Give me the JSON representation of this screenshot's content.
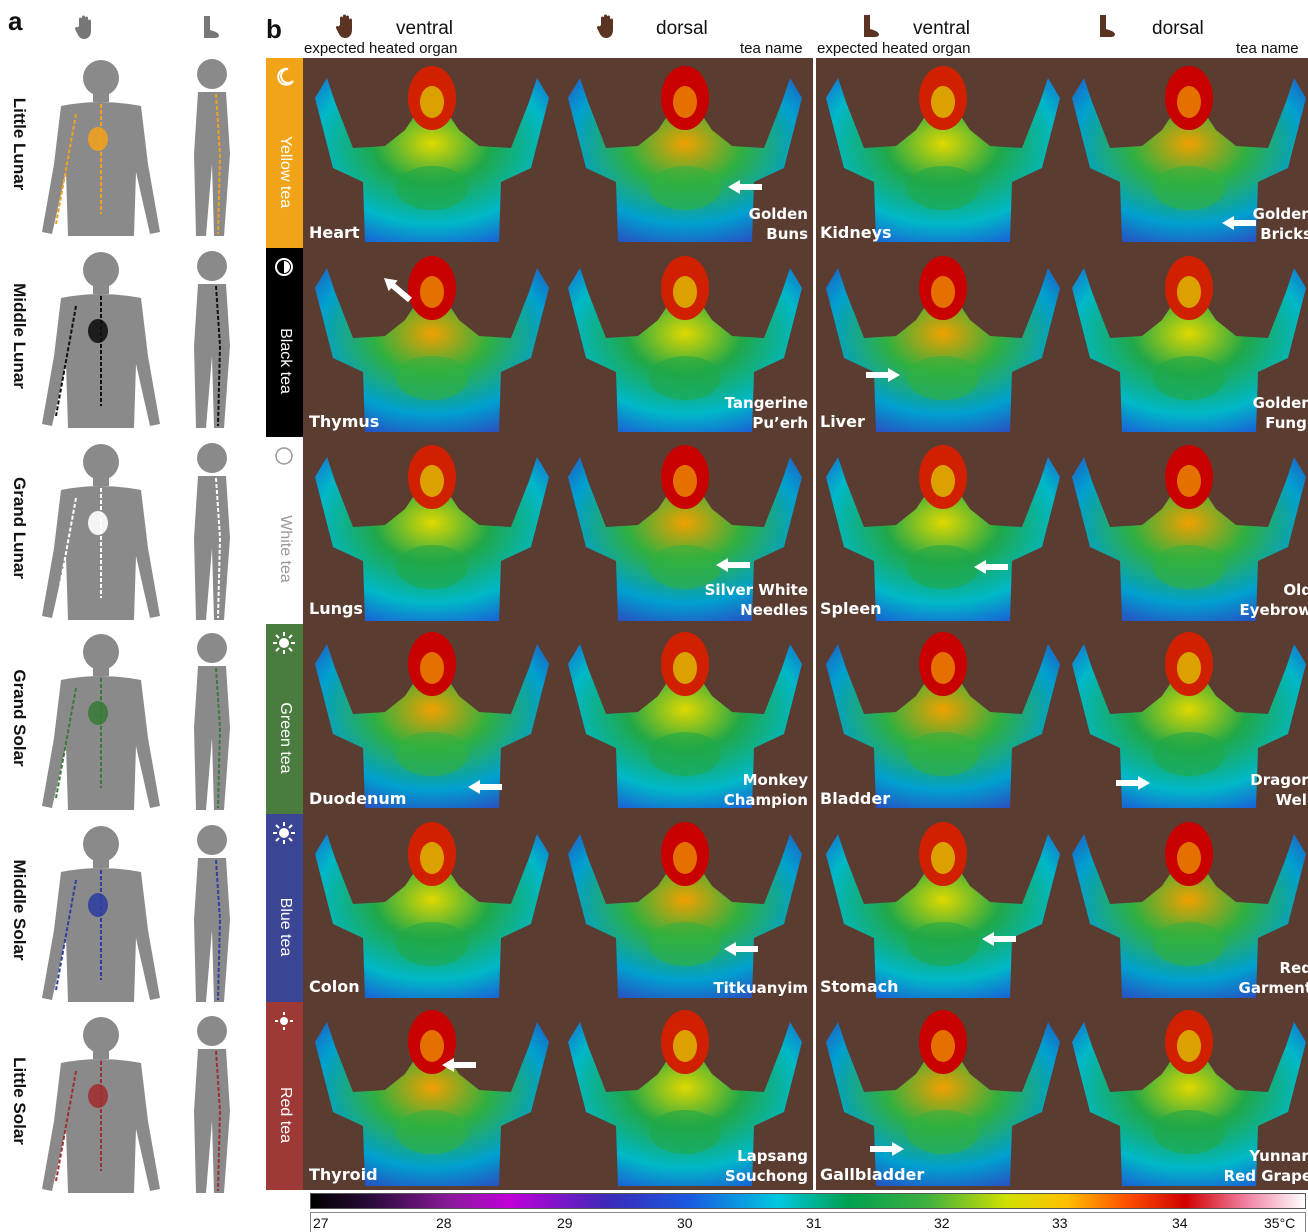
{
  "panel_a": {
    "letter": "a",
    "rows": [
      {
        "label": "Little Lunar",
        "color": "#f0a020"
      },
      {
        "label": "Middle Lunar",
        "color": "#111111"
      },
      {
        "label": "Grand Lunar",
        "color": "#ffffff"
      },
      {
        "label": "Grand Solar",
        "color": "#3a7a3a"
      },
      {
        "label": "Middle Solar",
        "color": "#3040a0"
      },
      {
        "label": "Little Solar",
        "color": "#a03030"
      }
    ]
  },
  "panel_b": {
    "letter": "b",
    "headers": {
      "hand_ventral": "ventral",
      "hand_dorsal": "dorsal",
      "foot_ventral": "ventral",
      "foot_dorsal": "dorsal",
      "sub_left": "expected heated organ",
      "sub_tea_1": "tea name",
      "sub_mid": "expected heated organ",
      "sub_tea_2": "tea name"
    },
    "bands": [
      {
        "label": "Yellow tea",
        "color": "#f2a419",
        "text_color": "#ffffff",
        "icon": "crescent-icon"
      },
      {
        "label": "Black tea",
        "color": "#000000",
        "text_color": "#ffffff",
        "icon": "moon-icon"
      },
      {
        "label": "White tea",
        "color": "#ffffff",
        "text_color": "#999999",
        "icon": "circle-icon"
      },
      {
        "label": "Green tea",
        "color": "#4a7c40",
        "text_color": "#ffffff",
        "icon": "sun-icon"
      },
      {
        "label": "Blue tea",
        "color": "#3a4593",
        "text_color": "#ffffff",
        "icon": "sun-icon"
      },
      {
        "label": "Red tea",
        "color": "#9e3a36",
        "text_color": "#ffffff",
        "icon": "small-sun-icon"
      }
    ],
    "rows": [
      {
        "organ_1": "Heart",
        "tea_1": "Golden\nBuns",
        "organ_2": "Kidneys",
        "tea_2": "Golden\nBricks"
      },
      {
        "organ_1": "Thymus",
        "tea_1": "Tangerine\nPu’erh",
        "organ_2": "Liver",
        "tea_2": "Golden\nFungi"
      },
      {
        "organ_1": "Lungs",
        "tea_1": "Silver White\nNeedles",
        "organ_2": "Spleen",
        "tea_2": "Old\nEyebrow"
      },
      {
        "organ_1": "Duodenum",
        "tea_1": "Monkey\nChampion",
        "organ_2": "Bladder",
        "tea_2": "Dragon\nWell"
      },
      {
        "organ_1": "Colon",
        "tea_1": "Titkuanyim",
        "organ_2": "Stomach",
        "tea_2": "Red\nGarment"
      },
      {
        "organ_1": "Thyroid",
        "tea_1": "Lapsang\nSouchong",
        "organ_2": "Gallbladder",
        "tea_2": "Yunnan\nRed Grape"
      }
    ],
    "scale_ticks": [
      "27",
      "28",
      "29",
      "30",
      "31",
      "32",
      "33",
      "34",
      "35°C"
    ]
  }
}
